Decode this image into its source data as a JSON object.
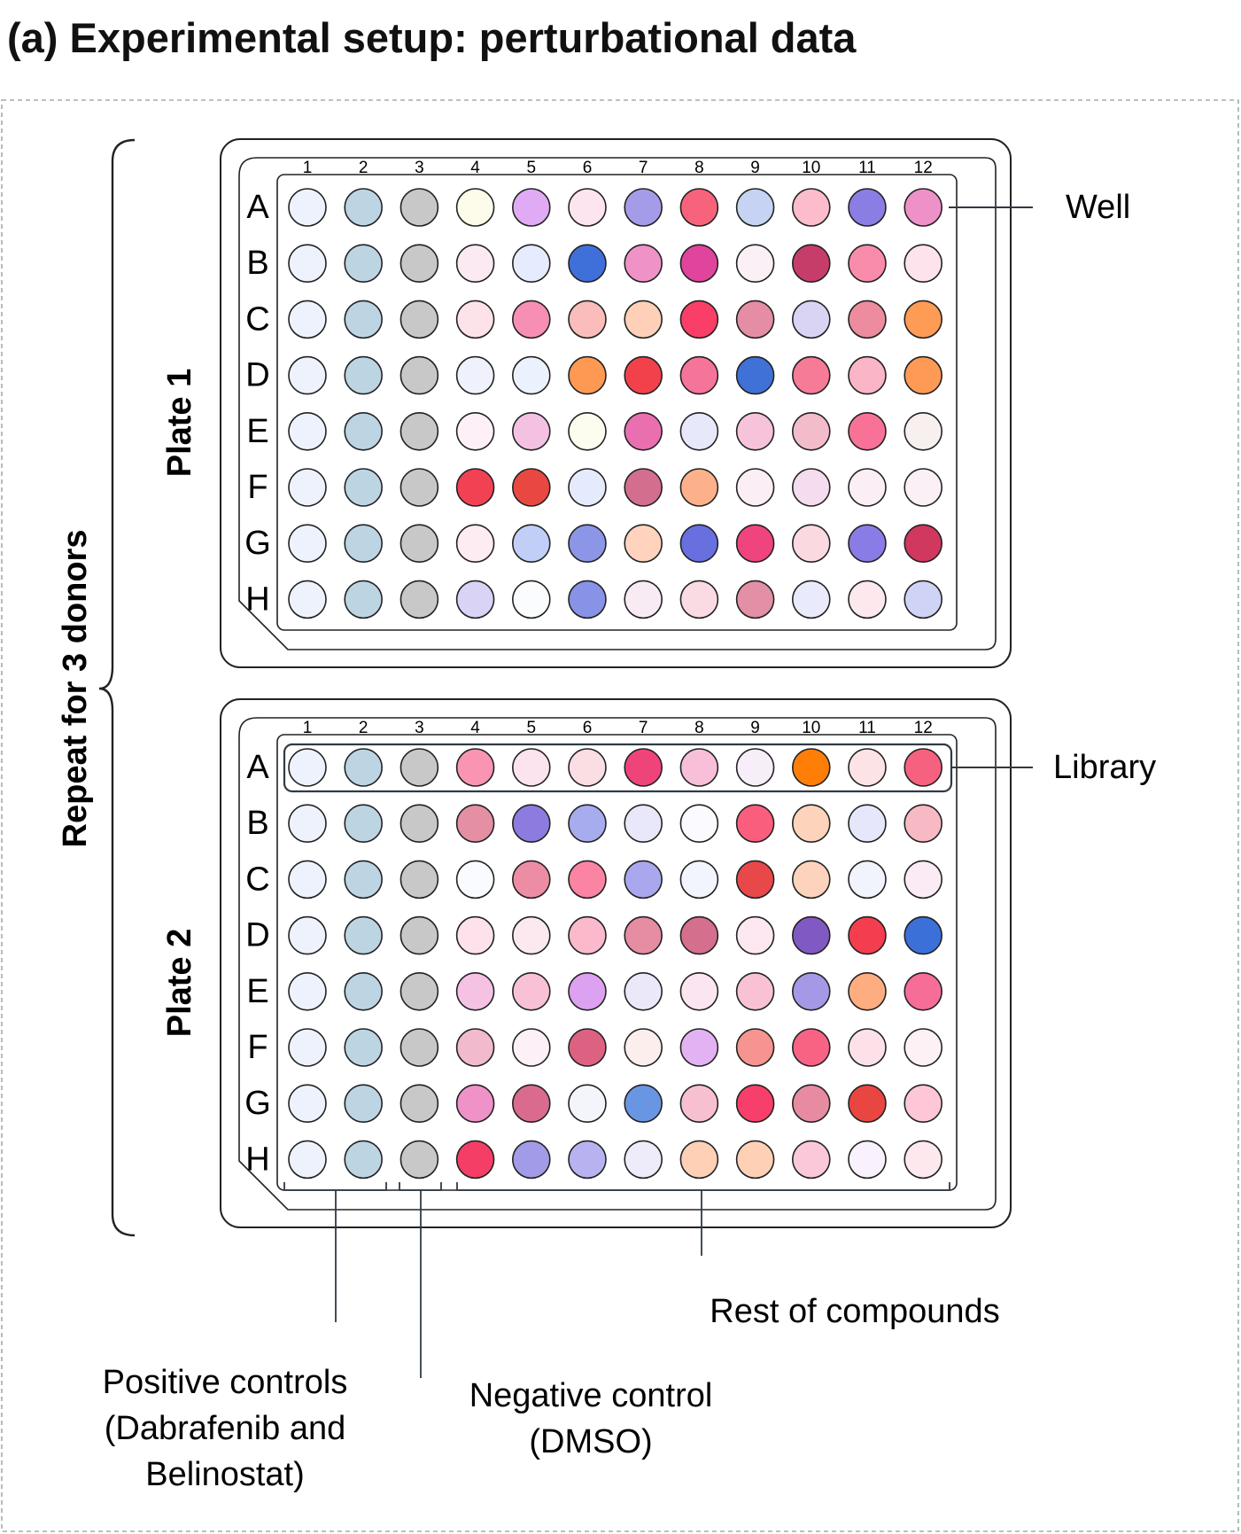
{
  "title": "(a) Experimental setup: perturbational data",
  "repeat_label": "Repeat for 3 donors",
  "rows": [
    "A",
    "B",
    "C",
    "D",
    "E",
    "F",
    "G",
    "H"
  ],
  "columns": [
    "1",
    "2",
    "3",
    "4",
    "5",
    "6",
    "7",
    "8",
    "9",
    "10",
    "11",
    "12"
  ],
  "annotations": {
    "well": "Well",
    "library": "Library",
    "rest": "Rest of compounds",
    "positive": [
      "Positive controls",
      "(Dabrafenib and",
      "Belinostat)"
    ],
    "negative": [
      "Negative control",
      "(DMSO)"
    ]
  },
  "control_colors": {
    "positive_1": "#eef2fd",
    "positive_2": "#bdd5e3",
    "negative": "#c8c8c8"
  },
  "plates": [
    {
      "label": "Plate 1",
      "compound_colors": [
        [
          "#fdfcea",
          "#e0aaf4",
          "#fde5ef",
          "#a59ce9",
          "#f8637c",
          "#c6d3f3",
          "#fcbccb",
          "#8a7de3",
          "#ee91c9"
        ],
        [
          "#fceaf3",
          "#e6ebfd",
          "#3f6fd8",
          "#ef92c8",
          "#e0449c",
          "#fbf0f6",
          "#c73d6a",
          "#f98cab",
          "#fde3ec"
        ],
        [
          "#fde2ea",
          "#f68fb3",
          "#fbbcbc",
          "#fed0b7",
          "#f93f68",
          "#e68da6",
          "#d9d4f4",
          "#ec8c9e",
          "#fe9b55"
        ],
        [
          "#eff2fd",
          "#ecf2fd",
          "#fe9954",
          "#f3414c",
          "#f57499",
          "#3f71d6",
          "#f67b96",
          "#fab5c7",
          "#fe9956"
        ],
        [
          "#fdf0f6",
          "#f4c1e3",
          "#fcfdef",
          "#ea6fb1",
          "#e8e8fb",
          "#f6c3da",
          "#f2bccb",
          "#f87196",
          "#f8efef"
        ],
        [
          "#f34154",
          "#e94842",
          "#e5ebfd",
          "#d36e8f",
          "#fdb18b",
          "#fbeef5",
          "#f5dcee",
          "#fbeff5",
          "#fbf0f6"
        ],
        [
          "#fdecf2",
          "#c1cef8",
          "#8b96e7",
          "#ffd3bd",
          "#6870e0",
          "#f0447e",
          "#fad9e0",
          "#8a7ce6",
          "#d0385f"
        ],
        [
          "#d9d4f6",
          "#fbfcfe",
          "#8892e6",
          "#f9ebf4",
          "#fadbe3",
          "#e38fa6",
          "#e9ebfc",
          "#fce8ed",
          "#cfd3f6"
        ]
      ]
    },
    {
      "label": "Plate 2",
      "compound_colors": [
        [
          "#f995b2",
          "#fde3ee",
          "#fbdde4",
          "#ef447a",
          "#f7bfd9",
          "#f8eefa",
          "#fe7e08",
          "#fde3e6",
          "#f76180"
        ],
        [
          "#e48fa3",
          "#8e7be0",
          "#a7acee",
          "#e9e8fb",
          "#fbfbff",
          "#f95f7d",
          "#fed3bc",
          "#e6e7fb",
          "#f7b9c3"
        ],
        [
          "#fafbfe",
          "#ed8da3",
          "#fa84a1",
          "#a9a8ee",
          "#f2f5fd",
          "#e8484a",
          "#fed3bd",
          "#f1f4fd",
          "#fbebf5"
        ],
        [
          "#fde2ec",
          "#fbe9ef",
          "#fbb9cc",
          "#e68ca3",
          "#d46f8d",
          "#fde8f1",
          "#8159c3",
          "#f43d4f",
          "#3b70d8"
        ],
        [
          "#f5c2e3",
          "#f8c1d6",
          "#dda1f1",
          "#ebe8f9",
          "#fbe5f0",
          "#f8c2d4",
          "#a598e7",
          "#fdad7f",
          "#f66d98"
        ],
        [
          "#f2bacd",
          "#fdf0f7",
          "#dd6282",
          "#fbeeed",
          "#e2b2f3",
          "#f59490",
          "#f86384",
          "#fce2e8",
          "#fdf1f6"
        ],
        [
          "#ee92c9",
          "#da6b8e",
          "#f4f5fc",
          "#6996e2",
          "#f7c0d1",
          "#f73f6b",
          "#e78ba0",
          "#e94541",
          "#fdc7d8"
        ],
        [
          "#f53e66",
          "#a29be7",
          "#b8b3f0",
          "#eeecfb",
          "#fed0b5",
          "#fed1b7",
          "#fbc8da",
          "#f9f1fc",
          "#fde8ee"
        ]
      ]
    }
  ]
}
